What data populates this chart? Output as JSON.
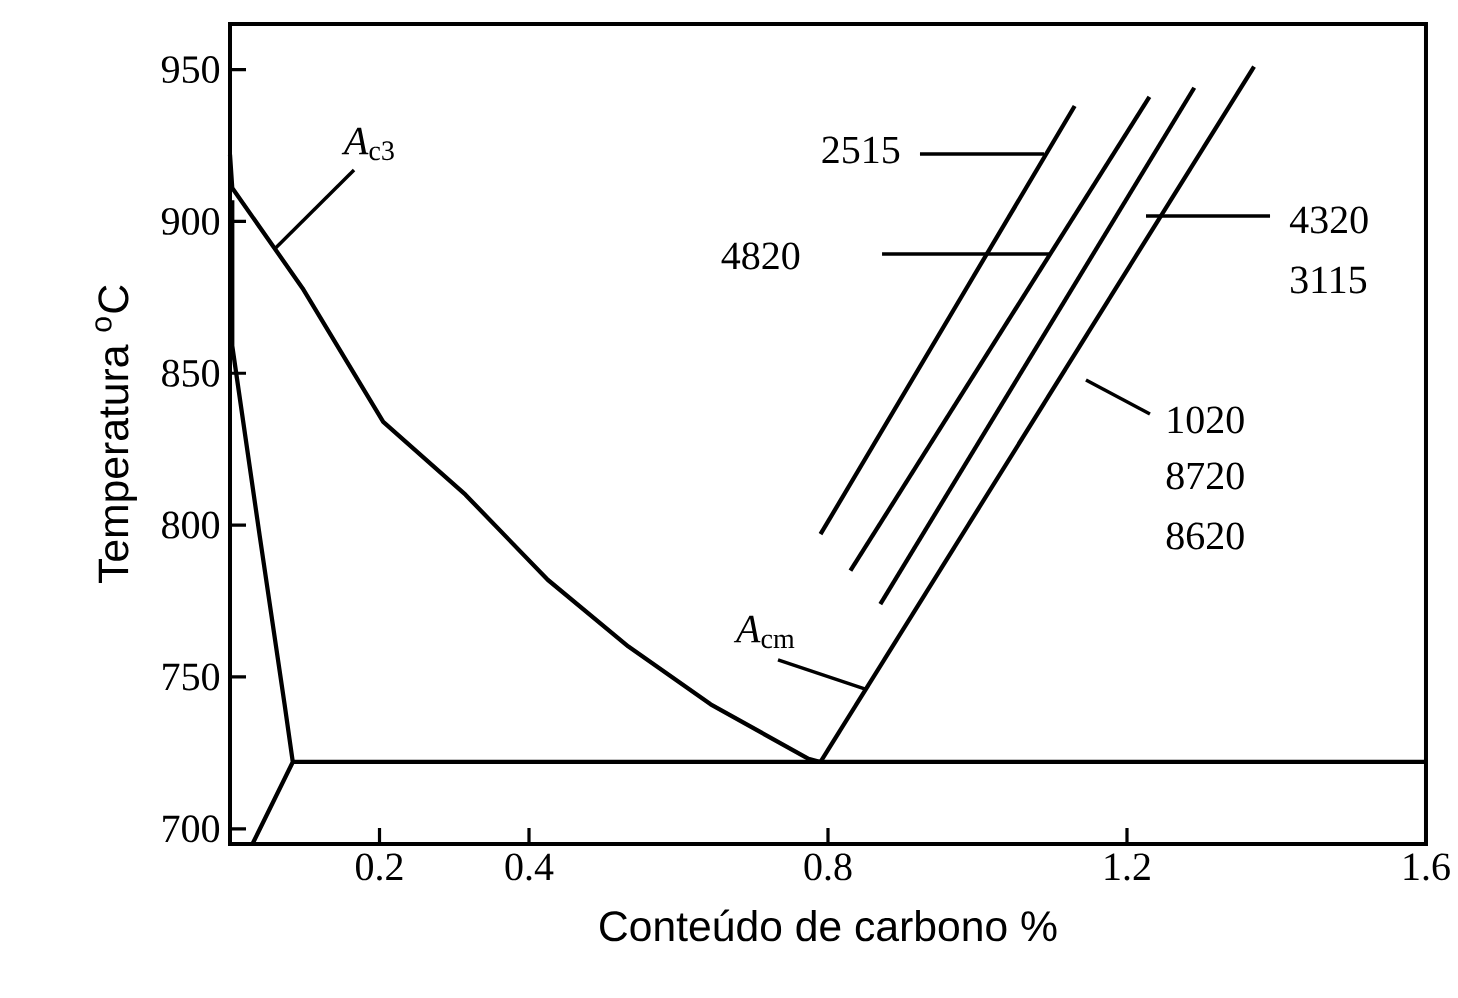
{
  "chart_data": {
    "type": "line",
    "xlabel": "Conteúdo de carbono %",
    "ylabel": "Temperatura $^{o}$C",
    "xlim": [
      0,
      1.6
    ],
    "ylim": [
      695,
      965
    ],
    "xticks": [
      0.2,
      0.4,
      0.8,
      1.2,
      1.6
    ],
    "yticks": [
      700,
      750,
      800,
      850,
      900,
      950
    ],
    "marker": "none",
    "line_style": "solid",
    "series": [
      {
        "color": "#000000",
        "x": [
          0,
          0.003,
          0.097,
          0.205,
          0.315,
          0.425,
          0.533,
          0.643,
          0.774,
          0.79
        ],
        "values": [
          922,
          911,
          878,
          834,
          810,
          782,
          760,
          741,
          723,
          722
        ]
      },
      {
        "color": "#000000",
        "x": [
          0.003,
          0.003,
          0.04,
          0.073,
          0.084,
          0.03
        ],
        "values": [
          907,
          859,
          796,
          741,
          722,
          695
        ]
      },
      {
        "color": "#000000",
        "x": [
          0.084,
          1.6
        ],
        "values": [
          722,
          722
        ]
      },
      {
        "color": "#000000",
        "x": [
          0.79,
          1.37
        ],
        "values": [
          722,
          951
        ]
      },
      {
        "color": "#000000",
        "x": [
          0.87,
          1.29
        ],
        "values": [
          774,
          944
        ]
      },
      {
        "color": "#000000",
        "x": [
          0.83,
          1.23
        ],
        "values": [
          785,
          941
        ]
      },
      {
        "color": "#000000",
        "x": [
          0.79,
          1.13
        ],
        "values": [
          797,
          938
        ]
      }
    ],
    "annotations": [
      {
        "text": "*A*$_{c3}$",
        "x": 0.06,
        "y": 891
      },
      {
        "text": "*A*$_{cm}$",
        "x": 0.85,
        "y": 746
      },
      "2515",
      "4820",
      "4320",
      "3115",
      "1020",
      "8720",
      "8620"
    ]
  }
}
